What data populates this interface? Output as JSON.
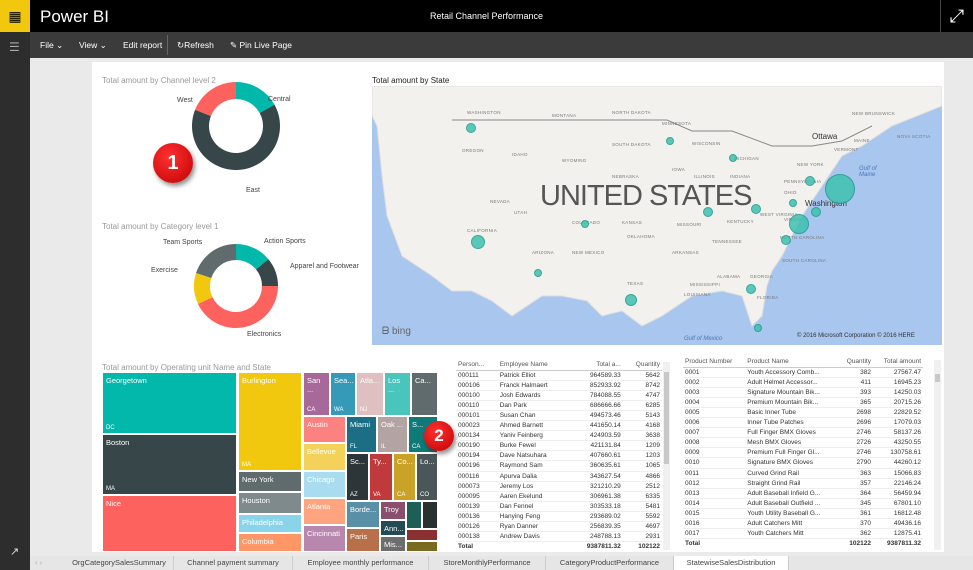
{
  "app": {
    "brand": "Power BI",
    "title": "Retail Channel Performance"
  },
  "toolbar": {
    "file": "File",
    "view": "View",
    "edit_report": "Edit report",
    "refresh": "Refresh",
    "pin": "Pin Live Page"
  },
  "donut1": {
    "title": "Total amount by Channel level 2",
    "slices": [
      {
        "label": "Central",
        "share": 17,
        "color": "#01b8aa"
      },
      {
        "label": "East",
        "share": 64,
        "color": "#374649"
      },
      {
        "label": "West",
        "share": 19,
        "color": "#fd625e"
      }
    ]
  },
  "donut2": {
    "title": "Total amount by Category level 1",
    "slices": [
      {
        "label": "Action Sports",
        "share": 14,
        "color": "#01b8aa"
      },
      {
        "label": "Apparel and Footwear",
        "share": 11,
        "color": "#374649"
      },
      {
        "label": "Electronics",
        "share": 43,
        "color": "#fd625e"
      },
      {
        "label": "Exercise",
        "share": 12,
        "color": "#f2c80f"
      },
      {
        "label": "Team Sports",
        "share": 20,
        "color": "#5f6b6d"
      }
    ]
  },
  "map": {
    "title": "Total amount by State",
    "country": "UNITED STATES",
    "city_ottawa": "Ottawa",
    "city_washington": "Washington",
    "gulf_maine": "Gulf of Maine",
    "gulf_mexico": "Gulf of Mexico",
    "bing": "bing",
    "copyright": "© 2016 Microsoft Corporation   © 2016 HERE",
    "bubble_color": "#3fc1b0",
    "states": [
      "WASHINGTON",
      "MONTANA",
      "NORTH DAKOTA",
      "MINNESOTA",
      "OREGON",
      "IDAHO",
      "SOUTH DAKOTA",
      "WISCONSIN",
      "MICHIGAN",
      "WYOMING",
      "IOWA",
      "NEBRASKA",
      "NEVADA",
      "UTAH",
      "COLORADO",
      "KANSAS",
      "MISSOURI",
      "ILLINOIS",
      "INDIANA",
      "OHIO",
      "PENNSYLVANIA",
      "NEW YORK",
      "VERMONT",
      "MAINE",
      "WEST VIRGINIA",
      "VIRGINIA",
      "KENTUCKY",
      "CALIFORNIA",
      "ARIZONA",
      "NEW MEXICO",
      "OKLAHOMA",
      "ARKANSAS",
      "TENNESSEE",
      "NORTH CAROLINA",
      "SOUTH CAROLINA",
      "ALABAMA",
      "GEORGIA",
      "MISSISSIPPI",
      "LOUISIANA",
      "TEXAS",
      "FLORIDA",
      "NEW BRUNSWICK",
      "NOVA SCOTIA"
    ]
  },
  "badges": {
    "one": "1",
    "two": "2"
  },
  "treemap": {
    "title": "Total amount by Operating unit Name and State",
    "tiles": [
      {
        "city": "Georgetown",
        "state": "DC"
      },
      {
        "city": "Boston",
        "state": "MA"
      },
      {
        "city": "Nice",
        "state": ""
      },
      {
        "city": "Burlington",
        "state": "MA"
      },
      {
        "city": "New York",
        "state": ""
      },
      {
        "city": "Houston",
        "state": ""
      },
      {
        "city": "Philadelphia",
        "state": ""
      },
      {
        "city": "Columbia",
        "state": ""
      },
      {
        "city": "San ...",
        "state": "CA"
      },
      {
        "city": "Sea...",
        "state": "WA"
      },
      {
        "city": "Atla...",
        "state": "NJ"
      },
      {
        "city": "Los ...",
        "state": ""
      },
      {
        "city": "Ca...",
        "state": ""
      },
      {
        "city": "Austin",
        "state": ""
      },
      {
        "city": "Bellevue",
        "state": ""
      },
      {
        "city": "Chicago",
        "state": ""
      },
      {
        "city": "Atlanta",
        "state": ""
      },
      {
        "city": "Cincinnati",
        "state": ""
      },
      {
        "city": "Miami",
        "state": "FL"
      },
      {
        "city": "Oak ...",
        "state": "IL"
      },
      {
        "city": "S...",
        "state": "CA"
      },
      {
        "city": "Sc...",
        "state": "AZ"
      },
      {
        "city": "Ty...",
        "state": "VA"
      },
      {
        "city": "Co...",
        "state": "CA"
      },
      {
        "city": "Lo...",
        "state": "CO"
      },
      {
        "city": "Borde...",
        "state": ""
      },
      {
        "city": "Paris",
        "state": ""
      },
      {
        "city": "Troy",
        "state": ""
      },
      {
        "city": "Ann...",
        "state": ""
      },
      {
        "city": "Mis...",
        "state": ""
      }
    ]
  },
  "employees": {
    "headers": [
      "Person...",
      "Employee Name",
      "Total a...",
      "Quantity"
    ],
    "rows": [
      [
        "000111",
        "Patrick Elliot",
        "964589.33",
        "5642"
      ],
      [
        "000106",
        "Franck Halmaert",
        "852933.92",
        "8742"
      ],
      [
        "000100",
        "Josh Edwards",
        "784088.55",
        "4747"
      ],
      [
        "000110",
        "Dan Park",
        "686666.66",
        "6285"
      ],
      [
        "000101",
        "Susan Chan",
        "494573.46",
        "5143"
      ],
      [
        "000023",
        "Ahmed Barnett",
        "441650.14",
        "4168"
      ],
      [
        "000134",
        "Yaniv Feinberg",
        "424903.59",
        "3638"
      ],
      [
        "000190",
        "Burke Fewel",
        "421131.84",
        "1209"
      ],
      [
        "000194",
        "Dave Natsuhara",
        "407660.61",
        "1203"
      ],
      [
        "000196",
        "Raymond Sam",
        "360635.61",
        "1065"
      ],
      [
        "000116",
        "Apurva Dalia",
        "343627.54",
        "4866"
      ],
      [
        "000073",
        "Jeremy Los",
        "321210.29",
        "2512"
      ],
      [
        "000095",
        "Aaren Ekelund",
        "306961.38",
        "6335"
      ],
      [
        "000139",
        "Dan Fennel",
        "303533.18",
        "5481"
      ],
      [
        "000136",
        "Hanying Feng",
        "293689.02",
        "5592"
      ],
      [
        "000126",
        "Ryan Danner",
        "256839.35",
        "4697"
      ],
      [
        "000138",
        "Andrew Davis",
        "248788.13",
        "2931"
      ]
    ],
    "total": [
      "Total",
      "",
      "9387811.32",
      "102122"
    ]
  },
  "products": {
    "headers": [
      "Product Number",
      "Product Name",
      "Quantity",
      "Total amount"
    ],
    "rows": [
      [
        "0001",
        "Youth Accessory Comb...",
        "382",
        "27567.47"
      ],
      [
        "0002",
        "Adult Helmet Accessor...",
        "411",
        "16945.23"
      ],
      [
        "0003",
        "Signature Mountain Bik...",
        "393",
        "14250.03"
      ],
      [
        "0004",
        "Premium Mountain Bik...",
        "365",
        "20715.26"
      ],
      [
        "0005",
        "Basic Inner Tube",
        "2698",
        "22829.52"
      ],
      [
        "0006",
        "Inner Tube Patches",
        "2696",
        "17079.03"
      ],
      [
        "0007",
        "Full Finger BMX Gloves",
        "2746",
        "58137.26"
      ],
      [
        "0008",
        "Mesh BMX Gloves",
        "2726",
        "43250.55"
      ],
      [
        "0009",
        "Premium Full Finger Gl...",
        "2746",
        "130758.61"
      ],
      [
        "0010",
        "Signature BMX Gloves",
        "2790",
        "44260.12"
      ],
      [
        "0011",
        "Curved Grind Rail",
        "363",
        "15066.83"
      ],
      [
        "0012",
        "Straight Grind Rail",
        "357",
        "22146.24"
      ],
      [
        "0013",
        "Adult Baseball Infield G...",
        "364",
        "56459.94"
      ],
      [
        "0014",
        "Adult Baseball Outfield ...",
        "345",
        "67801.10"
      ],
      [
        "0015",
        "Youth Utility Baseball G...",
        "361",
        "16812.48"
      ],
      [
        "0016",
        "Adult Catchers Mitt",
        "370",
        "49436.16"
      ],
      [
        "0017",
        "Youth Catchers Mitt",
        "362",
        "12875.41"
      ]
    ],
    "total": [
      "Total",
      "",
      "102122",
      "9387811.32"
    ]
  },
  "tabs": [
    "OrgCategorySalesSummary",
    "Channel payment summary",
    "Employee monthly performance",
    "StoreMonthlyPerformance",
    "CategoryProductPerformance",
    "StatewiseSalesDistribution"
  ],
  "active_tab": "StatewiseSalesDistribution"
}
